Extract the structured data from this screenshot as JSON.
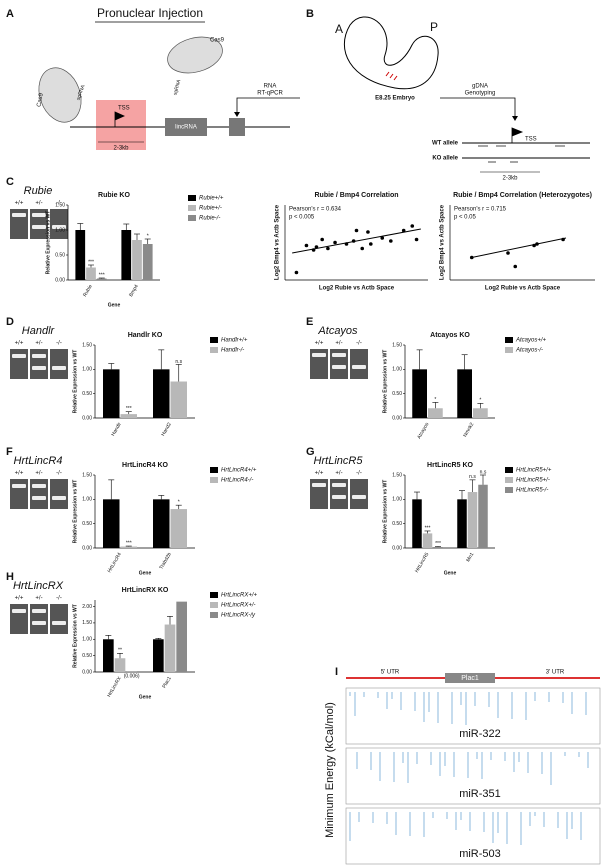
{
  "panel_labels": [
    "A",
    "B",
    "C",
    "D",
    "E",
    "F",
    "G",
    "H",
    "I"
  ],
  "diagram_a": {
    "title": "Pronuclear Injection",
    "cas9_left": "Cas9",
    "cas9_right": "Cas9",
    "sgrna_left": "sgRNA",
    "sgrna_right": "sgRNA",
    "tss": "TSS",
    "deletion": "2-3kb",
    "gene": "lincRNA",
    "rna": "RNA",
    "assay": "RT-qPCR"
  },
  "diagram_b": {
    "anterior": "A",
    "posterior": "P",
    "embryo": "E8.25 Embryo",
    "dna": "gDNA",
    "assay": "Genotyping",
    "tss": "TSS",
    "wt": "WT allele",
    "ko": "KO allele",
    "deletion": "2-3kb"
  },
  "gels": [
    {
      "name": "Rubie",
      "lanes": [
        "+/+",
        "+/-",
        "-/-"
      ]
    },
    {
      "name": "Handlr",
      "lanes": [
        "+/+",
        "+/-",
        "-/-"
      ]
    },
    {
      "name": "Atcayos",
      "lanes": [
        "+/+",
        "+/-",
        "-/-"
      ]
    },
    {
      "name": "HrtLincR4",
      "lanes": [
        "+/+",
        "+/-",
        "-/-"
      ]
    },
    {
      "name": "HrtLincR5",
      "lanes": [
        "+/+",
        "+/-",
        "-/-"
      ]
    },
    {
      "name": "HrtLincRX",
      "lanes": [
        "+/+",
        "+/-",
        "-/-"
      ]
    }
  ],
  "panel_i": {
    "y_label": "Minimum Energy (kCal/mol)",
    "utr5": "5' UTR",
    "gene": "Plac1",
    "utr3": "3' UTR",
    "mirs": [
      "miR-322",
      "miR-351",
      "miR-503"
    ]
  },
  "chart_data": [
    {
      "type": "bar",
      "title": "Rubie KO",
      "y_label": "Relative Expression vs WT",
      "x_label": "Gene",
      "categories": [
        "Rubie",
        "Bmp4"
      ],
      "series": [
        {
          "name": "Rubie+/+",
          "color": "#000000",
          "values": [
            1.0,
            1.0
          ],
          "errors": [
            0.13,
            0.12
          ],
          "sig": [
            null,
            null
          ]
        },
        {
          "name": "Rubie+/-",
          "color": "#b8b8b8",
          "values": [
            0.25,
            0.8
          ],
          "errors": [
            0.05,
            0.12
          ],
          "sig": [
            "***",
            null
          ]
        },
        {
          "name": "Rubie-/-",
          "color": "#8a8a8a",
          "values": [
            0.03,
            0.72
          ],
          "errors": [
            0.01,
            0.1
          ],
          "sig": [
            "***",
            "*"
          ]
        }
      ],
      "ylim": [
        0,
        1.5
      ],
      "yticks": [
        {
          "value": 0,
          "label": "0.00"
        },
        {
          "value": 0.5,
          "label": "0.50"
        },
        {
          "value": 1,
          "label": "1.00"
        },
        {
          "value": 1.5,
          "label": "1.50"
        }
      ]
    },
    {
      "type": "scatter",
      "title": "Rubie / Bmp4 Correlation",
      "stat_r": "Pearson's r = 0.634",
      "stat_p": "p < 0.005",
      "x_label": "Log2 Rubie vs Actb Space",
      "y_label": "Log2 Bmp4 vs Actb Space",
      "x": [
        0.8,
        1.5,
        2.0,
        2.2,
        2.6,
        3.0,
        3.5,
        4.3,
        4.8,
        5.0,
        5.4,
        5.8,
        6.0,
        6.8,
        7.4,
        8.3,
        8.9,
        9.2
      ],
      "y": [
        1.0,
        4.6,
        4.0,
        4.4,
        5.4,
        4.2,
        5.0,
        4.8,
        5.2,
        6.6,
        4.2,
        6.4,
        4.8,
        5.6,
        5.2,
        6.6,
        7.2,
        5.4
      ],
      "fit_x": [
        0.5,
        9.5
      ],
      "fit_y": [
        3.6,
        6.8
      ],
      "xlim": [
        0,
        10
      ],
      "ylim": [
        0,
        10
      ]
    },
    {
      "type": "scatter",
      "title": "Rubie / Bmp4 Correlation (Heterozygotes)",
      "stat_r": "Pearson's r = 0.715",
      "stat_p": "p < 0.05",
      "x_label": "Log2 Rubie vs Actb Space",
      "y_label": "Log2 Bmp4 vs Actb Space",
      "x": [
        1.5,
        4.0,
        4.5,
        5.8,
        6.0,
        7.8
      ],
      "y": [
        3.0,
        3.6,
        1.8,
        4.6,
        4.8,
        5.4
      ],
      "fit_x": [
        1.5,
        8.0
      ],
      "fit_y": [
        3.0,
        5.6
      ],
      "xlim": [
        0,
        10
      ],
      "ylim": [
        0,
        10
      ]
    },
    {
      "type": "bar",
      "title": "Handlr KO",
      "y_label": "Relative Expression vs WT",
      "categories": [
        "Handlr",
        "Hand2"
      ],
      "series": [
        {
          "name": "Handlr+/+",
          "color": "#000000",
          "values": [
            1.0,
            1.0
          ],
          "errors": [
            0.12,
            0.4
          ],
          "sig": [
            null,
            null
          ]
        },
        {
          "name": "Handlr-/-",
          "color": "#b8b8b8",
          "values": [
            0.08,
            0.75
          ],
          "errors": [
            0.05,
            0.35
          ],
          "sig": [
            "***",
            "n.s"
          ]
        }
      ],
      "ylim": [
        0,
        1.5
      ],
      "yticks": [
        {
          "value": 0,
          "label": "0.00"
        },
        {
          "value": 0.5,
          "label": "0.50"
        },
        {
          "value": 1,
          "label": "1.00"
        },
        {
          "value": 1.5,
          "label": "1.50"
        }
      ]
    },
    {
      "type": "bar",
      "title": "Atcayos KO",
      "y_label": "Relative Expression vs WT",
      "categories": [
        "Atcayos",
        "Nmnk2"
      ],
      "series": [
        {
          "name": "Atcayos+/+",
          "color": "#000000",
          "values": [
            1.0,
            1.0
          ],
          "errors": [
            0.4,
            0.3
          ],
          "sig": [
            null,
            null
          ]
        },
        {
          "name": "Atcayos-/-",
          "color": "#b8b8b8",
          "values": [
            0.2,
            0.2
          ],
          "errors": [
            0.12,
            0.1
          ],
          "sig": [
            "*",
            "*"
          ]
        }
      ],
      "ylim": [
        0,
        1.5
      ],
      "yticks": [
        {
          "value": 0,
          "label": "0.00"
        },
        {
          "value": 0.5,
          "label": "0.50"
        },
        {
          "value": 1,
          "label": "1.00"
        },
        {
          "value": 1.5,
          "label": "1.50"
        }
      ]
    },
    {
      "type": "bar",
      "title": "HrtLincR4 KO",
      "y_label": "Relative Expression vs WT",
      "x_label": "Gene",
      "categories": [
        "HrtLincR4",
        "Trabd2b"
      ],
      "series": [
        {
          "name": "HrtLincR4+/+",
          "color": "#000000",
          "values": [
            1.0,
            1.0
          ],
          "errors": [
            0.4,
            0.08
          ],
          "sig": [
            null,
            null
          ]
        },
        {
          "name": "HrtLincR4-/-",
          "color": "#b8b8b8",
          "values": [
            0.03,
            0.8
          ],
          "errors": [
            0.01,
            0.08
          ],
          "sig": [
            "***",
            "*"
          ]
        }
      ],
      "ylim": [
        0,
        1.5
      ],
      "yticks": [
        {
          "value": 0,
          "label": "0.00"
        },
        {
          "value": 0.5,
          "label": "0.50"
        },
        {
          "value": 1,
          "label": "1.00"
        },
        {
          "value": 1.5,
          "label": "1.50"
        }
      ]
    },
    {
      "type": "bar",
      "title": "HrtLincR5 KO",
      "y_label": "Relative Expression vs WT",
      "x_label": "Gene",
      "categories": [
        "HrtLincR5",
        "Mn1"
      ],
      "series": [
        {
          "name": "HrtLincR5+/+",
          "color": "#000000",
          "values": [
            1.0,
            1.0
          ],
          "errors": [
            0.15,
            0.18
          ],
          "sig": [
            null,
            null
          ]
        },
        {
          "name": "HrtLincR5+/-",
          "color": "#b8b8b8",
          "values": [
            0.3,
            1.15
          ],
          "errors": [
            0.05,
            0.25
          ],
          "sig": [
            "***",
            "n.s"
          ]
        },
        {
          "name": "HrtLincR5-/-",
          "color": "#8a8a8a",
          "values": [
            0.02,
            1.3
          ],
          "errors": [
            0.01,
            0.2
          ],
          "sig": [
            "***",
            "n.s"
          ]
        }
      ],
      "ylim": [
        0,
        1.5
      ],
      "yticks": [
        {
          "value": 0,
          "label": "0.00"
        },
        {
          "value": 0.5,
          "label": "0.50"
        },
        {
          "value": 1,
          "label": "1.00"
        },
        {
          "value": 1.5,
          "label": "1.50"
        }
      ]
    },
    {
      "type": "bar",
      "title": "HrtLincRX KO",
      "y_label": "Relative Expression vs WT",
      "x_label": "Gene",
      "categories": [
        "HrtLincRX",
        "Plac1"
      ],
      "series": [
        {
          "name": "HrtLincRX+/+",
          "color": "#000000",
          "values": [
            1.0,
            1.0
          ],
          "errors": [
            0.12,
            0.03
          ],
          "sig": [
            null,
            null
          ]
        },
        {
          "name": "HrtLincRX+/-",
          "color": "#b8b8b8",
          "values": [
            0.42,
            1.45
          ],
          "errors": [
            0.15,
            0.25
          ],
          "sig": [
            "**",
            null
          ]
        },
        {
          "name": "HrtLincRX-/y",
          "color": "#8a8a8a",
          "values": [
            0.006,
            2.15
          ],
          "errors": [
            null,
            null
          ],
          "sig": [
            null,
            null
          ],
          "value_labels": [
            "(0.006)",
            null
          ]
        }
      ],
      "ylim": [
        0,
        2.2
      ],
      "yticks": [
        {
          "value": 0,
          "label": "0.00"
        },
        {
          "value": 0.5,
          "label": "0.50"
        },
        {
          "value": 1,
          "label": "1.00"
        },
        {
          "value": 1.5,
          "label": "1.50"
        },
        {
          "value": 2,
          "label": "2.00"
        }
      ]
    }
  ]
}
